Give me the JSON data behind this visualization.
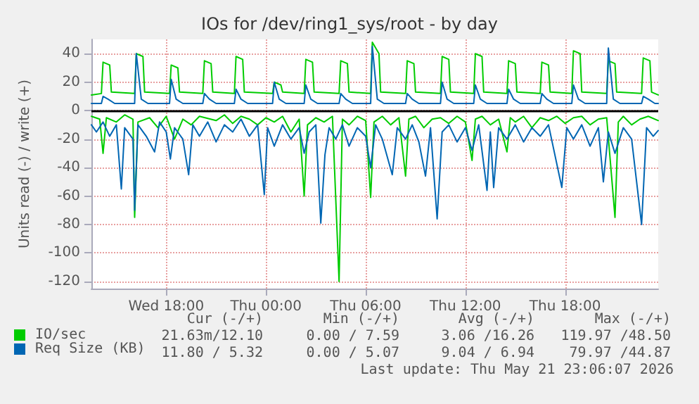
{
  "chart_data": {
    "type": "line",
    "title": "IOs for /dev/ring1_sys/root - by day",
    "ylabel": "Units read (-) / write (+)",
    "xlim": [
      "2026-05-20T13:30",
      "2026-05-21T23:36"
    ],
    "xticks": [
      {
        "value": "2026-05-20T18:00",
        "label": "Wed 18:00"
      },
      {
        "value": "2026-05-21T00:00",
        "label": "Thu 00:00"
      },
      {
        "value": "2026-05-21T06:00",
        "label": "Thu 06:00"
      },
      {
        "value": "2026-05-21T12:00",
        "label": "Thu 12:00"
      },
      {
        "value": "2026-05-21T18:00",
        "label": "Thu 18:00"
      }
    ],
    "ylim": [
      -125,
      50
    ],
    "yticks": [
      -120,
      -100,
      -80,
      -60,
      -40,
      -20,
      0,
      20,
      40
    ],
    "grid": true,
    "legend": "bottom left",
    "marker": "none",
    "line_style": "solid",
    "ref_lines": [
      {
        "axis": "y",
        "value": 0,
        "color": "#000000"
      }
    ],
    "annotations": [
      "Cur (-/+)",
      "Min (-/+)",
      "Avg (-/+)",
      "Max (-/+)",
      "21.63m/12.10",
      "0.00 / 7.59",
      "3.06 /16.26",
      "119.97 /48.50",
      "11.80 / 5.32",
      "0.00 / 5.07",
      "9.04 / 6.94",
      "79.97 /44.87",
      "Last update: Thu May 21 23:06:07 2026"
    ],
    "series": [
      {
        "name": "IO/sec",
        "color": "#00cc00",
        "x": [
          "2026-05-20T13:30",
          "2026-05-20T14:06",
          "2026-05-20T14:12",
          "2026-05-20T14:36",
          "2026-05-20T14:42",
          "2026-05-20T16:06",
          "2026-05-20T16:12",
          "2026-05-20T16:36",
          "2026-05-20T16:42",
          "2026-05-20T18:12",
          "2026-05-20T18:18",
          "2026-05-20T18:42",
          "2026-05-20T18:48",
          "2026-05-20T20:12",
          "2026-05-20T20:18",
          "2026-05-20T20:42",
          "2026-05-20T20:48",
          "2026-05-20T22:06",
          "2026-05-20T22:12",
          "2026-05-20T22:36",
          "2026-05-20T22:42",
          "2026-05-21T00:24",
          "2026-05-21T00:30",
          "2026-05-21T00:54",
          "2026-05-21T01:00",
          "2026-05-21T02:18",
          "2026-05-21T02:24",
          "2026-05-21T02:48",
          "2026-05-21T02:54",
          "2026-05-21T04:24",
          "2026-05-21T04:30",
          "2026-05-21T04:54",
          "2026-05-21T05:00",
          "2026-05-21T06:18",
          "2026-05-21T06:24",
          "2026-05-21T06:48",
          "2026-05-21T06:54",
          "2026-05-21T08:24",
          "2026-05-21T08:30",
          "2026-05-21T08:54",
          "2026-05-21T09:00",
          "2026-05-21T10:30",
          "2026-05-21T10:36",
          "2026-05-21T11:00",
          "2026-05-21T11:06",
          "2026-05-21T12:30",
          "2026-05-21T12:36",
          "2026-05-21T13:00",
          "2026-05-21T13:06",
          "2026-05-21T14:30",
          "2026-05-21T14:36",
          "2026-05-21T15:00",
          "2026-05-21T15:06",
          "2026-05-21T16:30",
          "2026-05-21T16:36",
          "2026-05-21T17:00",
          "2026-05-21T17:06",
          "2026-05-21T18:24",
          "2026-05-21T18:30",
          "2026-05-21T18:54",
          "2026-05-21T19:00",
          "2026-05-21T20:30",
          "2026-05-21T20:36",
          "2026-05-21T21:00",
          "2026-05-21T21:06",
          "2026-05-21T22:36",
          "2026-05-21T22:42",
          "2026-05-21T23:06",
          "2026-05-21T23:12",
          "2026-05-21T23:36"
        ],
        "values": [
          11,
          12,
          34,
          32,
          13,
          12,
          40,
          38,
          13,
          12,
          32,
          30,
          13,
          12,
          35,
          33,
          13,
          12,
          38,
          36,
          13,
          12,
          20,
          18,
          13,
          12,
          36,
          34,
          13,
          12,
          35,
          33,
          13,
          12,
          48,
          40,
          13,
          12,
          35,
          33,
          13,
          12,
          38,
          36,
          13,
          12,
          40,
          38,
          13,
          12,
          35,
          33,
          13,
          12,
          34,
          32,
          13,
          12,
          42,
          40,
          13,
          12,
          35,
          33,
          13,
          12,
          37,
          35,
          13,
          11
        ]
      },
      {
        "name": "Req Size (KB)",
        "color": "#0066b3",
        "x": [
          "2026-05-20T13:30",
          "2026-05-20T14:06",
          "2026-05-20T14:12",
          "2026-05-20T14:30",
          "2026-05-20T14:54",
          "2026-05-20T16:06",
          "2026-05-20T16:12",
          "2026-05-20T16:30",
          "2026-05-20T16:54",
          "2026-05-20T18:12",
          "2026-05-20T18:18",
          "2026-05-20T18:36",
          "2026-05-20T19:00",
          "2026-05-20T20:12",
          "2026-05-20T20:18",
          "2026-05-20T20:36",
          "2026-05-20T21:00",
          "2026-05-20T22:06",
          "2026-05-20T22:12",
          "2026-05-20T22:30",
          "2026-05-20T22:54",
          "2026-05-21T00:24",
          "2026-05-21T00:30",
          "2026-05-21T00:48",
          "2026-05-21T01:12",
          "2026-05-21T02:18",
          "2026-05-21T02:24",
          "2026-05-21T02:42",
          "2026-05-21T03:06",
          "2026-05-21T04:24",
          "2026-05-21T04:30",
          "2026-05-21T04:48",
          "2026-05-21T05:12",
          "2026-05-21T06:18",
          "2026-05-21T06:24",
          "2026-05-21T06:42",
          "2026-05-21T07:06",
          "2026-05-21T08:24",
          "2026-05-21T08:30",
          "2026-05-21T08:48",
          "2026-05-21T09:12",
          "2026-05-21T10:30",
          "2026-05-21T10:36",
          "2026-05-21T10:54",
          "2026-05-21T11:18",
          "2026-05-21T12:30",
          "2026-05-21T12:36",
          "2026-05-21T12:54",
          "2026-05-21T13:18",
          "2026-05-21T14:30",
          "2026-05-21T14:36",
          "2026-05-21T14:54",
          "2026-05-21T15:18",
          "2026-05-21T16:30",
          "2026-05-21T16:36",
          "2026-05-21T16:54",
          "2026-05-21T17:18",
          "2026-05-21T18:24",
          "2026-05-21T18:30",
          "2026-05-21T18:48",
          "2026-05-21T19:12",
          "2026-05-21T20:30",
          "2026-05-21T20:36",
          "2026-05-21T20:54",
          "2026-05-21T21:18",
          "2026-05-21T22:36",
          "2026-05-21T22:42",
          "2026-05-21T23:00",
          "2026-05-21T23:24",
          "2026-05-21T23:36"
        ],
        "values": [
          5,
          5,
          10,
          8,
          5,
          5,
          40,
          8,
          5,
          5,
          22,
          8,
          5,
          5,
          12,
          8,
          5,
          5,
          15,
          8,
          5,
          5,
          20,
          8,
          5,
          5,
          18,
          8,
          5,
          5,
          12,
          8,
          5,
          5,
          45,
          8,
          5,
          5,
          12,
          8,
          5,
          5,
          20,
          8,
          5,
          5,
          18,
          8,
          5,
          5,
          15,
          8,
          5,
          5,
          12,
          8,
          5,
          5,
          18,
          8,
          5,
          5,
          44,
          8,
          5,
          5,
          10,
          8,
          5,
          5
        ]
      },
      {
        "color": "#00cc00",
        "x": [
          "2026-05-20T13:30",
          "2026-05-20T14:00",
          "2026-05-20T14:12",
          "2026-05-20T14:24",
          "2026-05-20T15:00",
          "2026-05-20T15:30",
          "2026-05-20T16:00",
          "2026-05-20T16:06",
          "2026-05-20T16:18",
          "2026-05-20T17:00",
          "2026-05-20T17:30",
          "2026-05-20T18:00",
          "2026-05-20T18:30",
          "2026-05-20T19:00",
          "2026-05-20T19:30",
          "2026-05-20T20:00",
          "2026-05-20T21:00",
          "2026-05-20T21:30",
          "2026-05-20T22:00",
          "2026-05-20T22:30",
          "2026-05-20T23:00",
          "2026-05-20T23:30",
          "2026-05-21T00:00",
          "2026-05-21T00:30",
          "2026-05-21T01:00",
          "2026-05-21T01:30",
          "2026-05-21T02:00",
          "2026-05-21T02:18",
          "2026-05-21T02:30",
          "2026-05-21T03:00",
          "2026-05-21T03:30",
          "2026-05-21T04:00",
          "2026-05-21T04:24",
          "2026-05-21T04:36",
          "2026-05-21T05:00",
          "2026-05-21T05:30",
          "2026-05-21T06:00",
          "2026-05-21T06:18",
          "2026-05-21T06:30",
          "2026-05-21T07:00",
          "2026-05-21T07:30",
          "2026-05-21T08:00",
          "2026-05-21T08:24",
          "2026-05-21T08:36",
          "2026-05-21T09:00",
          "2026-05-21T09:30",
          "2026-05-21T10:00",
          "2026-05-21T10:30",
          "2026-05-21T11:00",
          "2026-05-21T11:30",
          "2026-05-21T12:00",
          "2026-05-21T12:24",
          "2026-05-21T12:36",
          "2026-05-21T13:00",
          "2026-05-21T13:30",
          "2026-05-21T14:00",
          "2026-05-21T14:30",
          "2026-05-21T14:42",
          "2026-05-21T15:00",
          "2026-05-21T15:30",
          "2026-05-21T16:00",
          "2026-05-21T16:30",
          "2026-05-21T17:00",
          "2026-05-21T17:30",
          "2026-05-21T18:00",
          "2026-05-21T18:30",
          "2026-05-21T19:00",
          "2026-05-21T19:30",
          "2026-05-21T20:00",
          "2026-05-21T20:30",
          "2026-05-21T21:00",
          "2026-05-21T21:12",
          "2026-05-21T21:30",
          "2026-05-21T22:00",
          "2026-05-21T22:30",
          "2026-05-21T23:00",
          "2026-05-21T23:36"
        ],
        "values": [
          -4,
          -6,
          -30,
          -5,
          -8,
          -3,
          -6,
          -75,
          -8,
          -5,
          -12,
          -4,
          -20,
          -6,
          -10,
          -4,
          -7,
          -3,
          -9,
          -4,
          -6,
          -10,
          -5,
          -8,
          -4,
          -15,
          -6,
          -60,
          -10,
          -5,
          -8,
          -4,
          -120,
          -6,
          -10,
          -4,
          -7,
          -61,
          -8,
          -4,
          -10,
          -5,
          -46,
          -6,
          -4,
          -12,
          -6,
          -5,
          -9,
          -4,
          -8,
          -35,
          -6,
          -4,
          -10,
          -6,
          -29,
          -5,
          -8,
          -4,
          -12,
          -5,
          -7,
          -4,
          -9,
          -5,
          -4,
          -10,
          -6,
          -5,
          -75,
          -8,
          -4,
          -10,
          -6,
          -4,
          -7
        ]
      },
      {
        "color": "#0066b3",
        "x": [
          "2026-05-20T13:30",
          "2026-05-20T13:48",
          "2026-05-20T14:12",
          "2026-05-20T14:36",
          "2026-05-20T15:00",
          "2026-05-20T15:18",
          "2026-05-20T15:30",
          "2026-05-20T16:00",
          "2026-05-20T16:06",
          "2026-05-20T16:18",
          "2026-05-20T16:48",
          "2026-05-20T17:18",
          "2026-05-20T17:36",
          "2026-05-20T18:00",
          "2026-05-20T18:15",
          "2026-05-20T18:30",
          "2026-05-20T19:00",
          "2026-05-20T19:21",
          "2026-05-20T19:36",
          "2026-05-20T20:00",
          "2026-05-20T20:30",
          "2026-05-20T21:00",
          "2026-05-20T21:30",
          "2026-05-20T22:00",
          "2026-05-20T22:30",
          "2026-05-20T23:00",
          "2026-05-20T23:30",
          "2026-05-20T23:54",
          "2026-05-21T00:06",
          "2026-05-21T00:30",
          "2026-05-21T01:00",
          "2026-05-21T01:30",
          "2026-05-21T02:00",
          "2026-05-21T02:18",
          "2026-05-21T02:36",
          "2026-05-21T03:00",
          "2026-05-21T03:18",
          "2026-05-21T03:33",
          "2026-05-21T03:48",
          "2026-05-21T04:12",
          "2026-05-21T04:36",
          "2026-05-21T05:00",
          "2026-05-21T05:30",
          "2026-05-21T06:00",
          "2026-05-21T06:18",
          "2026-05-21T06:36",
          "2026-05-21T07:00",
          "2026-05-21T07:36",
          "2026-05-21T07:54",
          "2026-05-21T08:24",
          "2026-05-21T08:48",
          "2026-05-21T09:12",
          "2026-05-21T09:36",
          "2026-05-21T09:54",
          "2026-05-21T10:18",
          "2026-05-21T10:36",
          "2026-05-21T11:00",
          "2026-05-21T11:30",
          "2026-05-21T12:00",
          "2026-05-21T12:24",
          "2026-05-21T12:48",
          "2026-05-21T13:18",
          "2026-05-21T13:30",
          "2026-05-21T13:42",
          "2026-05-21T14:00",
          "2026-05-21T14:30",
          "2026-05-21T15:00",
          "2026-05-21T15:30",
          "2026-05-21T16:00",
          "2026-05-21T16:30",
          "2026-05-21T17:00",
          "2026-05-21T17:48",
          "2026-05-21T18:06",
          "2026-05-21T18:30",
          "2026-05-21T19:00",
          "2026-05-21T19:30",
          "2026-05-21T20:00",
          "2026-05-21T20:18",
          "2026-05-21T20:36",
          "2026-05-21T21:00",
          "2026-05-21T21:30",
          "2026-05-21T22:00",
          "2026-05-21T22:36",
          "2026-05-21T22:54",
          "2026-05-21T23:18",
          "2026-05-21T23:36"
        ],
        "values": [
          -10,
          -15,
          -8,
          -18,
          -10,
          -55,
          -12,
          -20,
          -70,
          -10,
          -18,
          -29,
          -8,
          -15,
          -34,
          -12,
          -20,
          -45,
          -10,
          -18,
          -8,
          -22,
          -10,
          -15,
          -6,
          -18,
          -10,
          -59,
          -12,
          -25,
          -10,
          -20,
          -12,
          -30,
          -15,
          -10,
          -79,
          -31,
          -12,
          -20,
          -10,
          -25,
          -12,
          -18,
          -40,
          -10,
          -20,
          -45,
          -12,
          -20,
          -10,
          -22,
          -46,
          -12,
          -76,
          -15,
          -10,
          -22,
          -12,
          -28,
          -10,
          -56,
          -15,
          -54,
          -12,
          -20,
          -10,
          -22,
          -12,
          -18,
          -10,
          -54,
          -12,
          -20,
          -10,
          -25,
          -12,
          -50,
          -15,
          -30,
          -12,
          -20,
          -80,
          -12,
          -18,
          -14
        ]
      }
    ]
  }
}
